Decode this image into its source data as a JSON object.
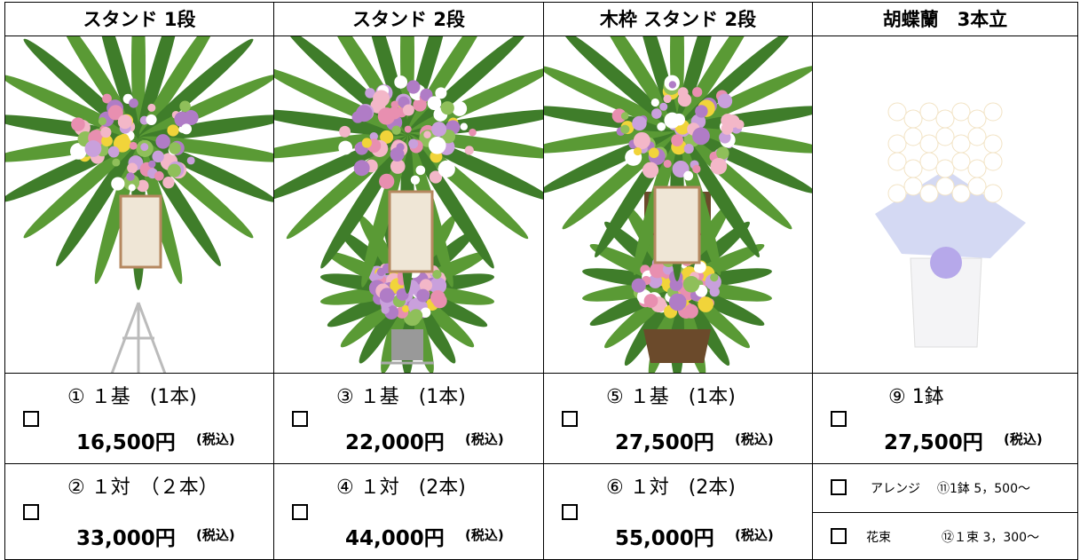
{
  "columns": [
    {
      "title": "スタンド 1段",
      "options": [
        {
          "label": "① １基　(1本)",
          "price": "16,500円",
          "tax": "(税込)"
        },
        {
          "label": "② １対　（２本）",
          "price": "33,000円",
          "tax": "(税込)"
        }
      ]
    },
    {
      "title": "スタンド 2段",
      "options": [
        {
          "label": "③ １基　(1本)",
          "price": "22,000円",
          "tax": "(税込)"
        },
        {
          "label": "④ １対　(2本)",
          "price": "44,000円",
          "tax": "(税込)"
        }
      ]
    },
    {
      "title": "木枠 スタンド 2段",
      "options": [
        {
          "label": "⑤ １基　(1本)",
          "price": "27,500円",
          "tax": "(税込)"
        },
        {
          "label": "⑥ １対　(2本)",
          "price": "55,000円",
          "tax": "(税込)"
        }
      ]
    },
    {
      "title": "胡蝶蘭　3本立",
      "options": [
        {
          "label": "⑨ 1鉢",
          "price": "27,500円",
          "tax": "(税込)"
        }
      ],
      "extras": [
        {
          "name": "アレンジ",
          "detail": "⑪1鉢 5，500～"
        },
        {
          "name": "花束",
          "detail": "⑫１束 3，300～"
        }
      ]
    }
  ]
}
